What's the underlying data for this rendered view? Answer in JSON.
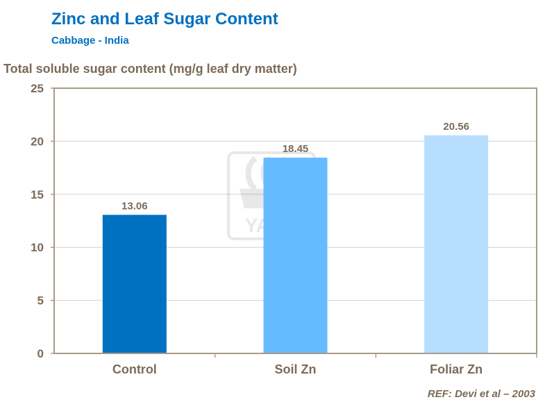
{
  "title": "Zinc and Leaf Sugar Content",
  "subtitle": "Cabbage - India",
  "reference": "REF: Devi et al – 2003",
  "watermark": "YARA",
  "chart_data": {
    "type": "bar",
    "title": "Zinc and Leaf Sugar Content",
    "subtitle": "Cabbage - India",
    "ylabel": "Total soluble sugar content (mg/g leaf dry matter)",
    "xlabel": "",
    "categories": [
      "Control",
      "Soil Zn",
      "Foliar Zn"
    ],
    "values": [
      13.06,
      18.45,
      20.56
    ],
    "data_labels": [
      "13.06",
      "18.45",
      "20.56"
    ],
    "ylim": [
      0,
      25
    ],
    "yticks": [
      0,
      5,
      10,
      15,
      20,
      25
    ],
    "grid": true,
    "colors": [
      "#0070C0",
      "#66BBFF",
      "#B8DEFF"
    ],
    "text_color": "#7B6A58"
  }
}
